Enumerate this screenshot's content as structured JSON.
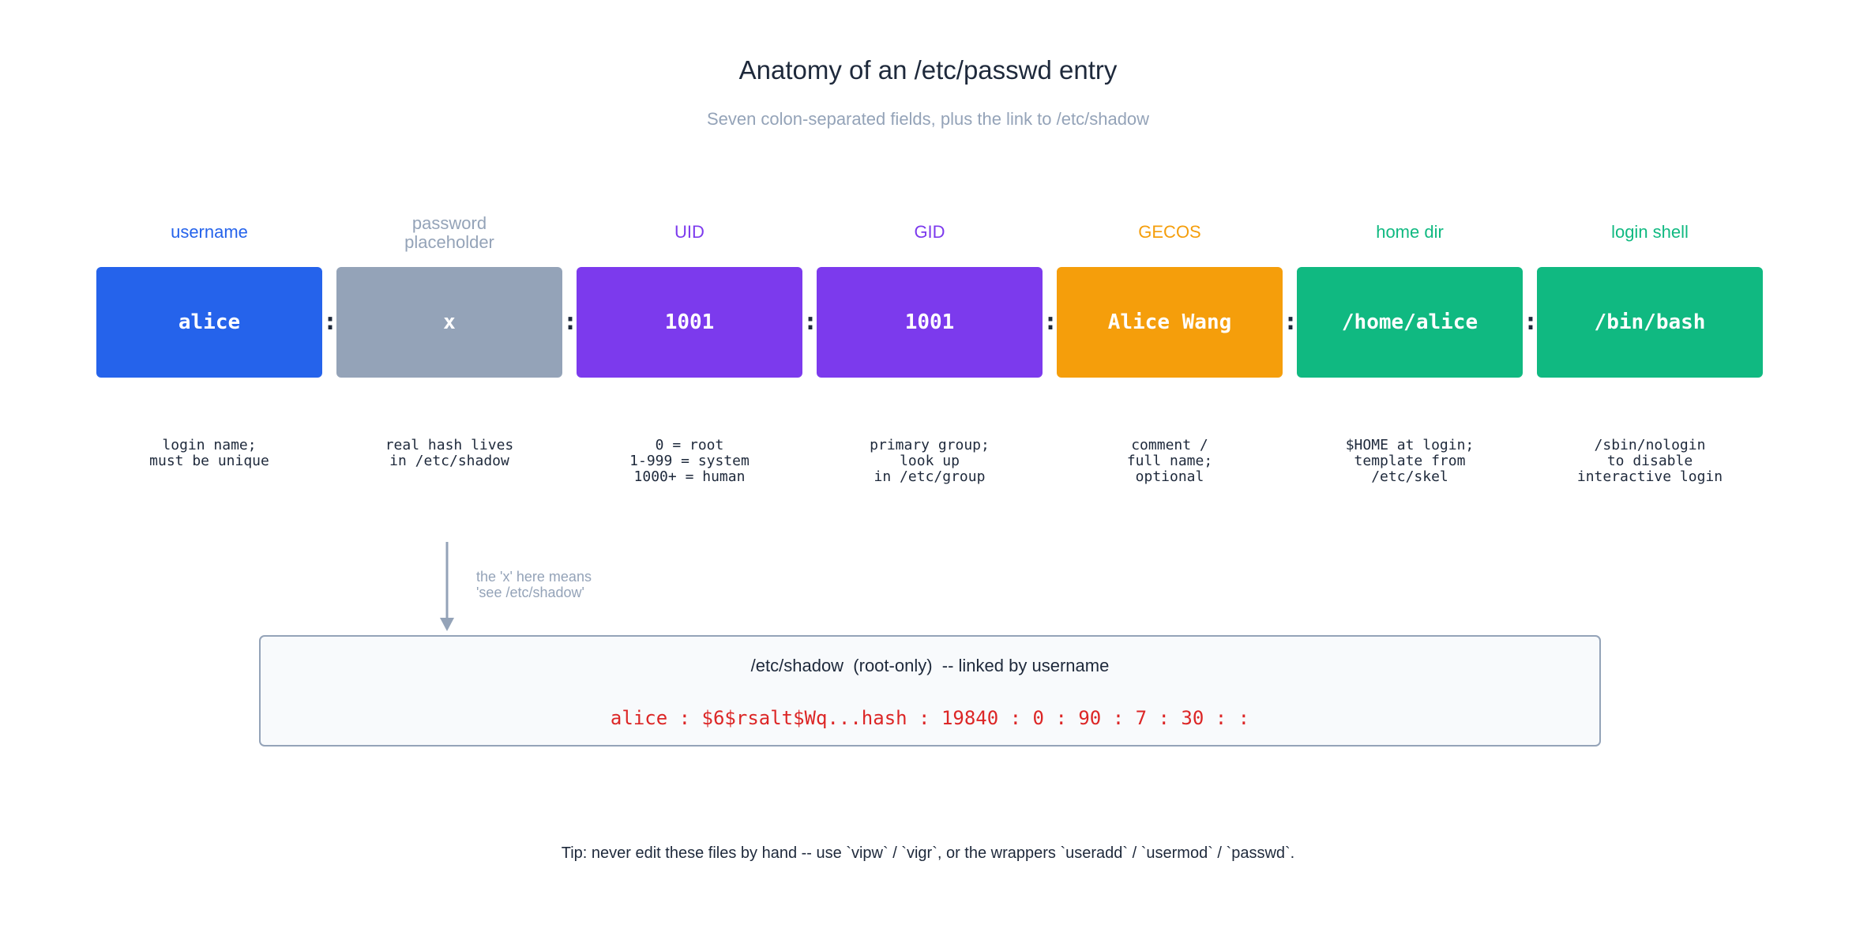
{
  "title": "Anatomy of an /etc/passwd entry",
  "subtitle": "Seven colon-separated fields, plus the link to /etc/shadow",
  "separator": ":",
  "fields": [
    {
      "label": "username",
      "value": "alice",
      "desc": "login name;\nmust be unique",
      "color": "#2563eb"
    },
    {
      "label": "password\nplaceholder",
      "value": "x",
      "desc": "real hash lives\nin /etc/shadow",
      "color": "#94a3b8"
    },
    {
      "label": "UID",
      "value": "1001",
      "desc": "0 = root\n1-999 = system\n1000+ = human",
      "color": "#7c3aed"
    },
    {
      "label": "GID",
      "value": "1001",
      "desc": "primary group;\nlook up\nin /etc/group",
      "color": "#7c3aed"
    },
    {
      "label": "GECOS",
      "value": "Alice Wang",
      "desc": "comment /\nfull name;\noptional",
      "color": "#f59e0b"
    },
    {
      "label": "home dir",
      "value": "/home/alice",
      "desc": "$HOME at login;\ntemplate from\n/etc/skel",
      "color": "#10b981"
    },
    {
      "label": "login shell",
      "value": "/bin/bash",
      "desc": "/sbin/nologin\nto disable\ninteractive login",
      "color": "#10b981"
    }
  ],
  "link_note": "the 'x' here means\n'see /etc/shadow'",
  "shadow": {
    "title": "/etc/shadow  (root-only)  -- linked by username",
    "line": "alice : $6$rsalt$Wq...hash : 19840 : 0 : 90 : 7 : 30 : :"
  },
  "tip": "Tip: never edit these files by hand -- use `vipw` / `vigr`, or the wrappers `useradd` / `usermod` / `passwd`.",
  "colors": {
    "text": "#1e293b",
    "muted": "#94a3b8",
    "shadow_line": "#dc2626",
    "shadow_border": "#94a3b8",
    "shadow_bg": "#f8fafc"
  }
}
